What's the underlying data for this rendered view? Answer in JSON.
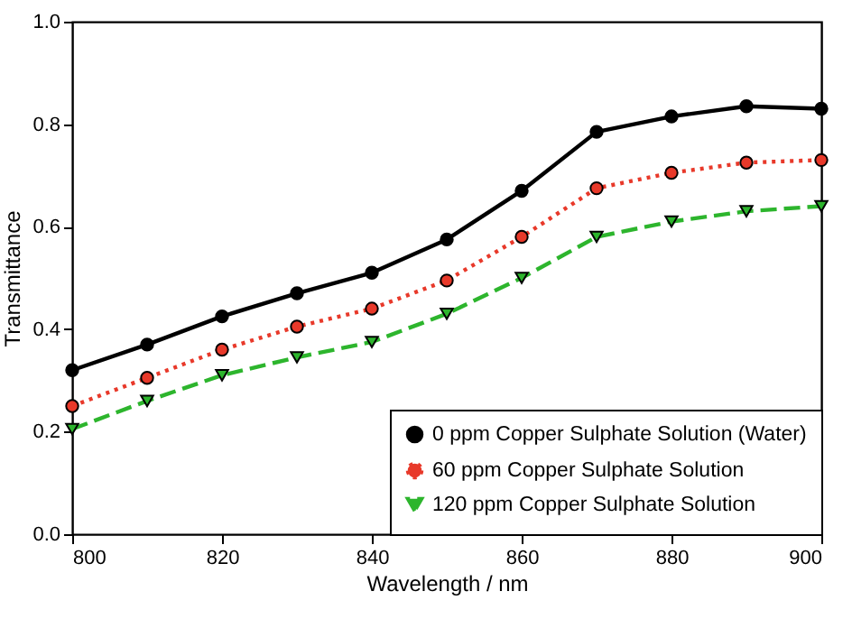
{
  "chart_data": {
    "type": "line",
    "xlabel": "Wavelength / nm",
    "ylabel": "Transmittance",
    "x": [
      800,
      810,
      820,
      830,
      840,
      850,
      860,
      870,
      880,
      890,
      900
    ],
    "series": [
      {
        "name": "0 ppm Copper Sulphate Solution (Water)",
        "color": "#000000",
        "line_style": "solid",
        "marker": "circle",
        "values": [
          0.32,
          0.37,
          0.425,
          0.47,
          0.51,
          0.575,
          0.67,
          0.785,
          0.815,
          0.835,
          0.83
        ]
      },
      {
        "name": "60 ppm Copper Sulphate Solution",
        "color": "#e8392a",
        "line_style": "dotted",
        "marker": "circle",
        "values": [
          0.25,
          0.305,
          0.36,
          0.405,
          0.44,
          0.495,
          0.58,
          0.675,
          0.705,
          0.725,
          0.73
        ]
      },
      {
        "name": "120 ppm Copper Sulphate Solution",
        "color": "#2db52d",
        "line_style": "dashed",
        "marker": "triangle",
        "values": [
          0.205,
          0.26,
          0.31,
          0.345,
          0.375,
          0.43,
          0.5,
          0.58,
          0.61,
          0.63,
          0.64
        ]
      }
    ],
    "xlim": [
      800,
      900
    ],
    "xticks": [
      800,
      820,
      840,
      860,
      880,
      900
    ],
    "ylim": [
      0,
      1
    ],
    "yticks": [
      {
        "value": 0,
        "label": "0.0"
      },
      0.2,
      0.4,
      0.6,
      0.8,
      {
        "value": 1,
        "label": "1.0"
      }
    ],
    "grid": false,
    "legend": "bottom right"
  }
}
